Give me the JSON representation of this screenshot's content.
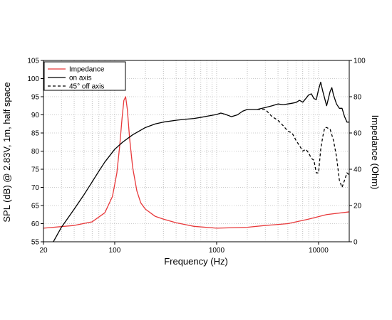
{
  "chart_data": {
    "type": "line",
    "title": "",
    "xlabel": "Frequency (Hz)",
    "ylabel_left": "SPL (dB) @ 2.83V, 1m, half space",
    "ylabel_right": "Impedance (Ohm)",
    "x_scale": "log",
    "xlim": [
      20,
      20000
    ],
    "ylim_left": [
      55,
      105
    ],
    "ylim_right": [
      0,
      100
    ],
    "x_ticks": [
      "20",
      "100",
      "1000",
      "10000"
    ],
    "y_ticks_left": [
      "55",
      "60",
      "65",
      "70",
      "75",
      "80",
      "85",
      "90",
      "95",
      "100",
      "105"
    ],
    "y_ticks_right": [
      "0",
      "20",
      "40",
      "60",
      "80",
      "100"
    ],
    "grid": true,
    "legend_position": "top-left",
    "series": [
      {
        "name": "Impedance",
        "axis": "right",
        "color": "#e8393b",
        "dash": "solid",
        "x": [
          20,
          40,
          60,
          80,
          95,
          105,
          112,
          118,
          123,
          128,
          133,
          140,
          150,
          165,
          180,
          200,
          250,
          300,
          400,
          600,
          1000,
          2000,
          3000,
          5000,
          8000,
          12000,
          20000
        ],
        "y": [
          7.5,
          9,
          11,
          16,
          25,
          38,
          53,
          68,
          78,
          80,
          73,
          57,
          41,
          28,
          21.5,
          18,
          14,
          12.5,
          10.5,
          8.5,
          7.5,
          8,
          9,
          10,
          12.5,
          15,
          16.5
        ]
      },
      {
        "name": "on axis",
        "axis": "left",
        "color": "#000000",
        "dash": "solid",
        "x": [
          25,
          30,
          40,
          50,
          60,
          70,
          80,
          100,
          120,
          150,
          200,
          250,
          300,
          400,
          500,
          600,
          700,
          800,
          1000,
          1100,
          1200,
          1400,
          1600,
          1800,
          2000,
          2500,
          3000,
          3500,
          4000,
          4500,
          5000,
          5500,
          6000,
          6500,
          7000,
          7500,
          8000,
          8500,
          9000,
          9500,
          10000,
          10500,
          11000,
          12000,
          13000,
          13500,
          14000,
          15000,
          16000,
          17000,
          18000,
          19000,
          20000
        ],
        "y": [
          55,
          59,
          64,
          68,
          71.5,
          74.5,
          77,
          80.5,
          82.5,
          84.5,
          86.5,
          87.5,
          88,
          88.5,
          88.8,
          89,
          89.3,
          89.6,
          90.1,
          90.5,
          90.2,
          89.5,
          90,
          91,
          91.5,
          91.5,
          92,
          92.5,
          93,
          92.8,
          93,
          93.2,
          93.4,
          94,
          93.5,
          94.5,
          95.5,
          95.8,
          94.5,
          94.2,
          97,
          99,
          96.5,
          92.5,
          96.5,
          97.5,
          95.5,
          93,
          91.8,
          91.8,
          89.5,
          88,
          88
        ]
      },
      {
        "name": "45° off axis",
        "axis": "left",
        "color": "#000000",
        "dash": "4,3",
        "x": [
          2500,
          3000,
          3500,
          4000,
          4500,
          5000,
          5500,
          6000,
          6500,
          7000,
          7500,
          8000,
          8500,
          9000,
          9500,
          10000,
          10500,
          11000,
          11500,
          12000,
          13000,
          14000,
          15000,
          16000,
          17000,
          18000,
          19000,
          20000
        ],
        "y": [
          91.5,
          91.5,
          89.5,
          88.5,
          87,
          85.5,
          85,
          83,
          81.5,
          80,
          80.5,
          79.5,
          78,
          77.5,
          74,
          74,
          80.5,
          84,
          86.5,
          86.5,
          86,
          83,
          78.5,
          72,
          70,
          72,
          74,
          73.5
        ]
      }
    ]
  }
}
